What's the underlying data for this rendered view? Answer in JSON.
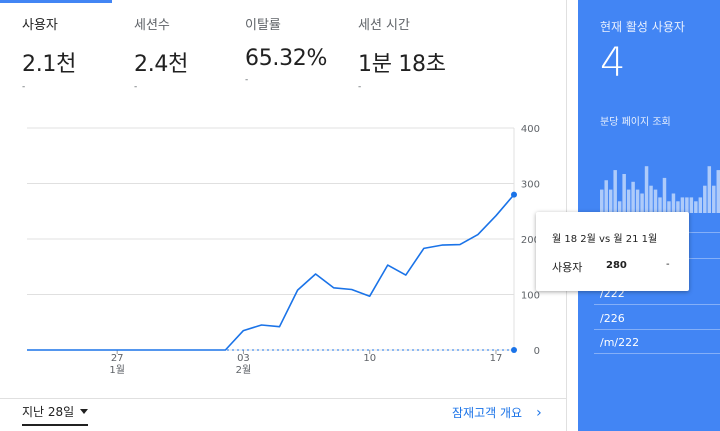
{
  "metrics": [
    {
      "label": "사용자",
      "value": "2.1천",
      "delta": "-"
    },
    {
      "label": "세션수",
      "value": "2.4천",
      "delta": "-"
    },
    {
      "label": "이탈률",
      "value": "65.32%",
      "delta": "-"
    },
    {
      "label": "세션 시간",
      "value": "1분 18초",
      "delta": "-"
    }
  ],
  "footer": {
    "range_label": "지난 28일",
    "overview_link": "잠재고객 개요"
  },
  "realtime": {
    "title": "현재 활성 사용자",
    "count": "4",
    "subtitle": "분당 페이지 조회",
    "rows": [
      "/222",
      "/226",
      "/m/222"
    ],
    "bar_levels": [
      0.3,
      0.42,
      0.3,
      0.55,
      0.15,
      0.5,
      0.3,
      0.4,
      0.3,
      0.25,
      0.6,
      0.35,
      0.3,
      0.2,
      0.45,
      0.15,
      0.25,
      0.15,
      0.2,
      0.2,
      0.2,
      0.15,
      0.2,
      0.35,
      0.6,
      0.35,
      0.55
    ]
  },
  "tooltip": {
    "date": "월 18 2월 vs 월 21 1월",
    "metric": "사용자",
    "value": "280",
    "delta": "-"
  },
  "colors": {
    "accent": "#4285f4",
    "line": "#1a73e8",
    "grid": "#e0e0e0",
    "realtime_bg": "#4285f4"
  },
  "chart_data": {
    "type": "line",
    "ylim": [
      0,
      400
    ],
    "y_ticks": [
      "400",
      "300",
      "200",
      "100",
      "0"
    ],
    "x_ticks": [
      {
        "day": "27",
        "month": "1월",
        "index": 5
      },
      {
        "day": "03",
        "month": "2월",
        "index": 12
      },
      {
        "day": "10",
        "month": "",
        "index": 19
      },
      {
        "day": "17",
        "month": "",
        "index": 26
      }
    ],
    "series": [
      {
        "values": [
          0,
          0,
          0,
          0,
          0,
          0,
          0,
          0,
          0,
          0,
          0,
          0,
          35,
          45,
          42,
          108,
          137,
          112,
          109,
          97,
          153,
          135,
          183,
          189,
          190,
          208,
          242,
          280
        ]
      },
      {
        "values": [
          0,
          0,
          0,
          0,
          0,
          0,
          0,
          0,
          0,
          0,
          0,
          0,
          0,
          0,
          0,
          0,
          0,
          0,
          0,
          0,
          0,
          0,
          0,
          0,
          0,
          0,
          0,
          0
        ],
        "dashed": true
      }
    ]
  }
}
